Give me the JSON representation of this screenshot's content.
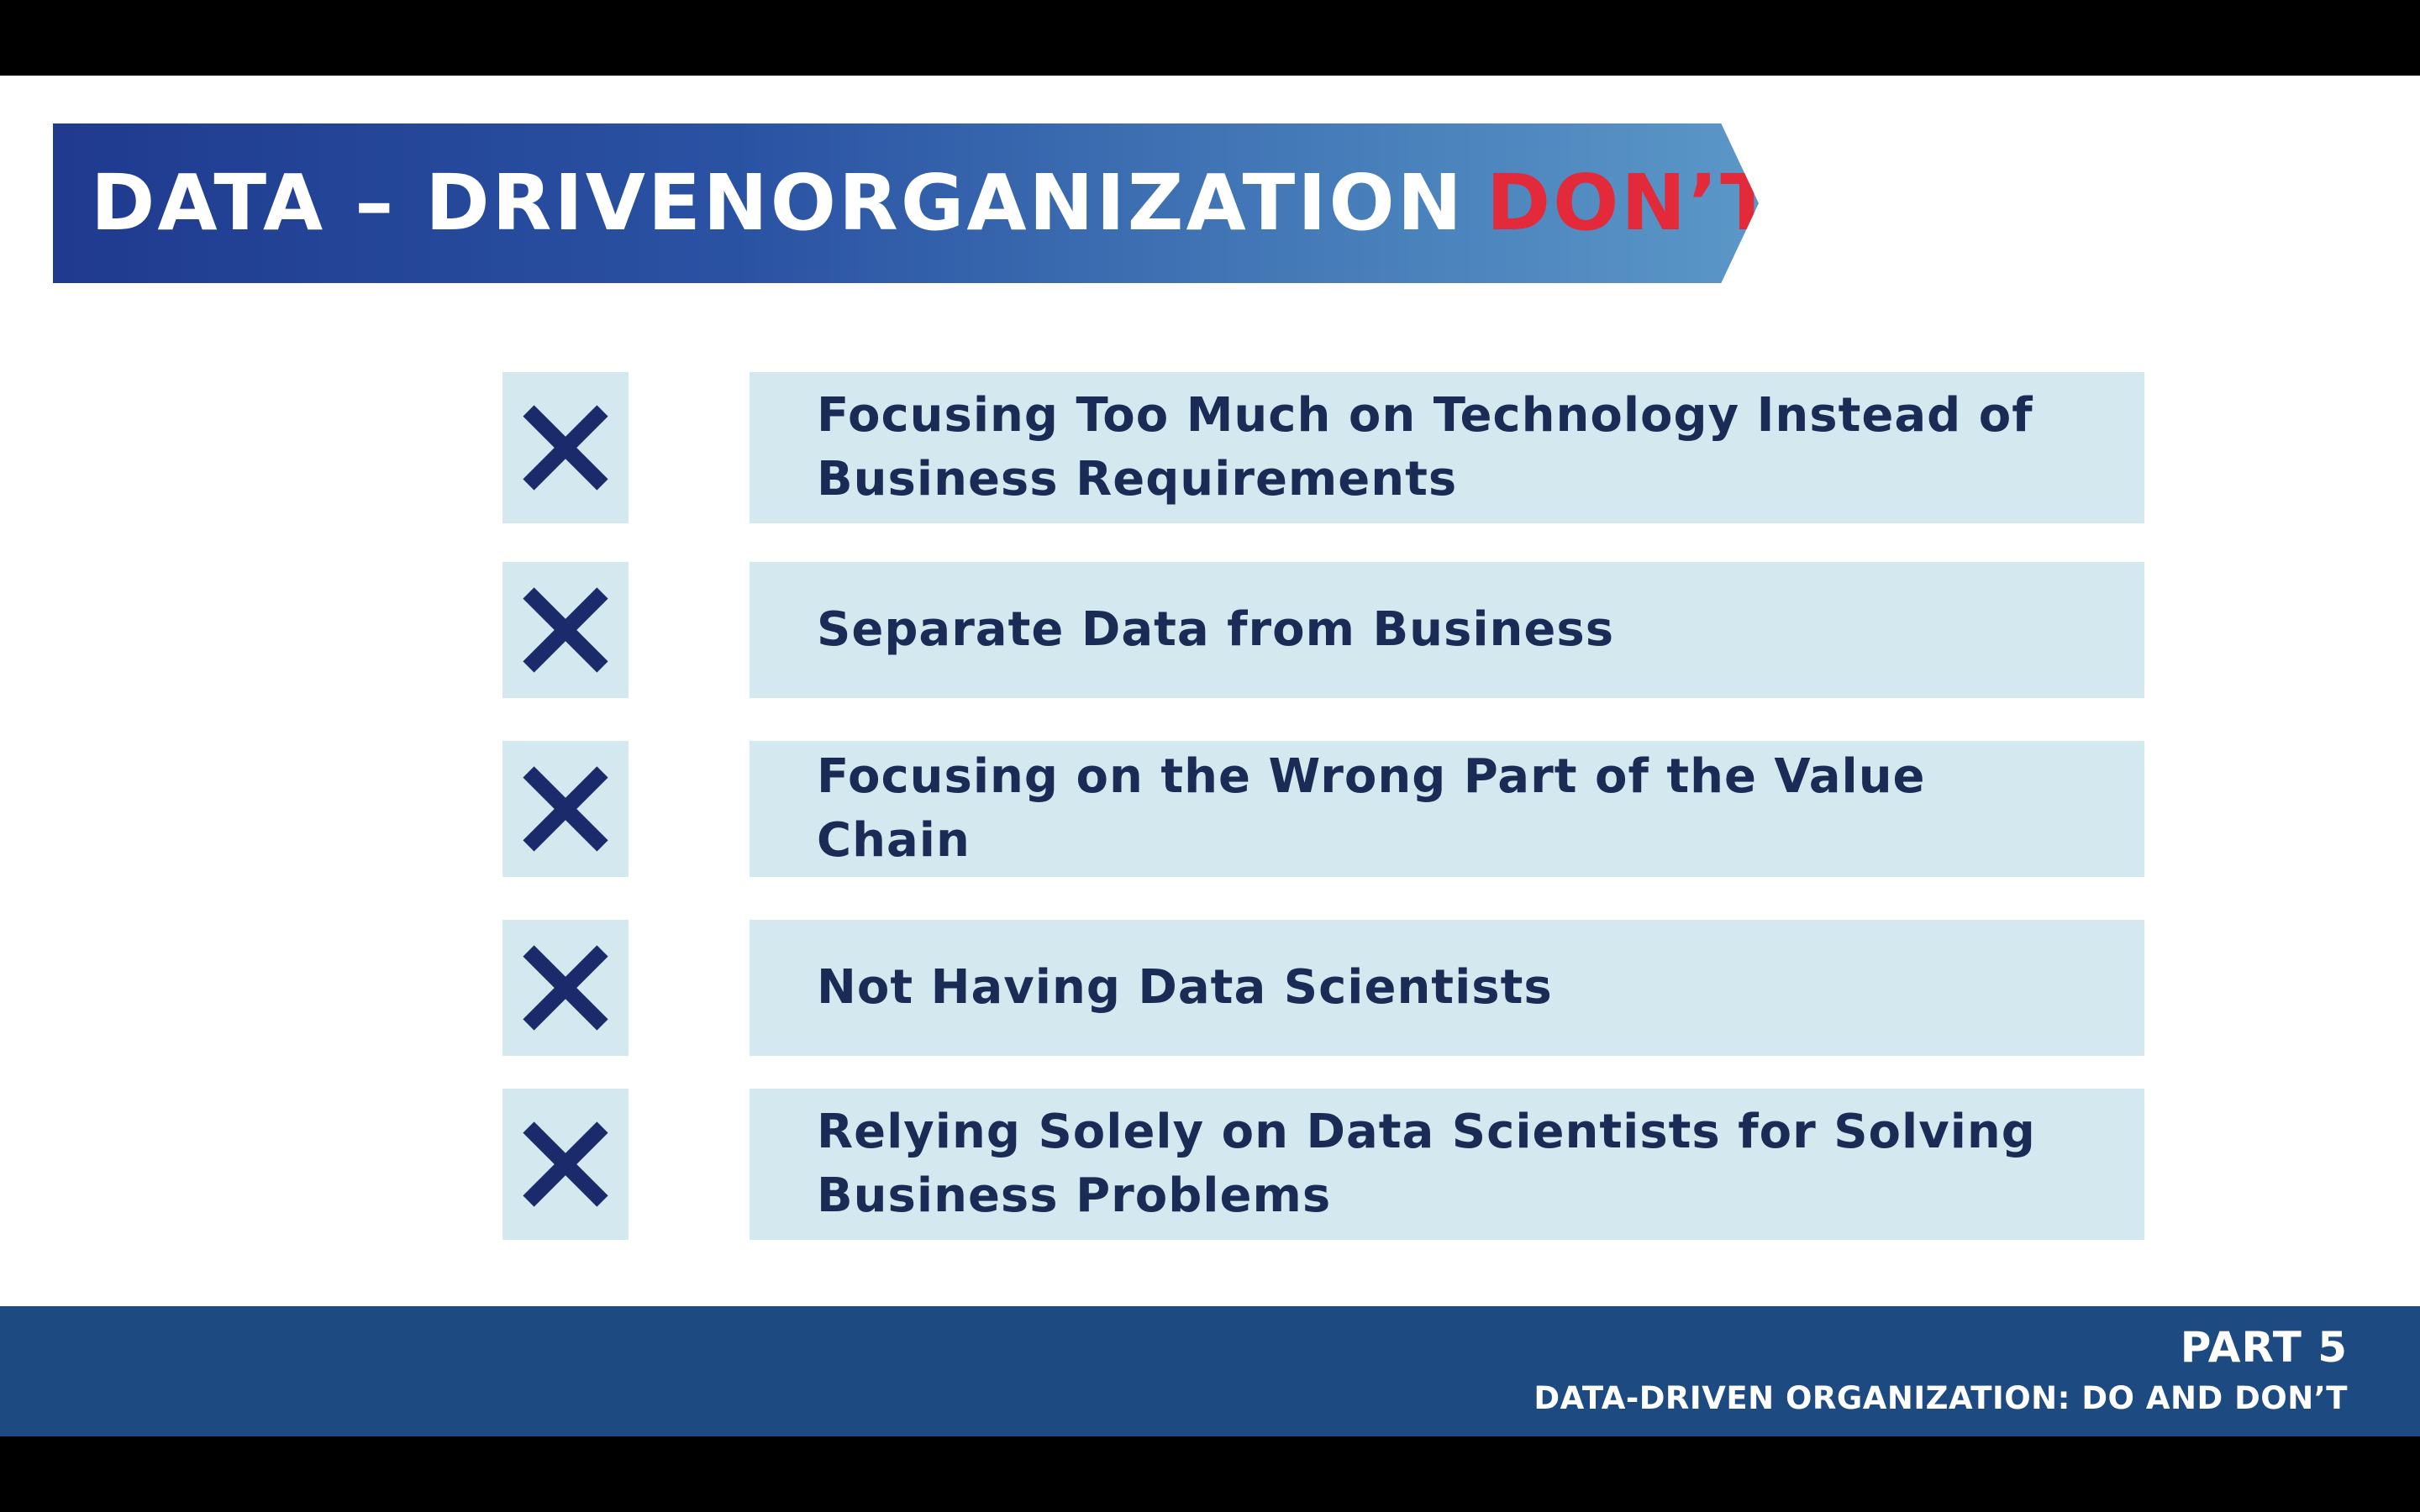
{
  "banner": {
    "title": "DATA – DRIVENORGANIZATION",
    "highlight": "DON’T",
    "highlight_color": "#e32a3a"
  },
  "items": [
    {
      "icon": "x-mark-icon",
      "text": "Focusing Too Much on Technology Instead of Business Requirements"
    },
    {
      "icon": "x-mark-icon",
      "text": "Separate Data from Business"
    },
    {
      "icon": "x-mark-icon",
      "text": "Focusing on the Wrong Part of the Value Chain"
    },
    {
      "icon": "x-mark-icon",
      "text": "Not Having Data Scientists"
    },
    {
      "icon": "x-mark-icon",
      "text": "Relying Solely on Data Scientists for Solving Business Problems"
    }
  ],
  "footer": {
    "part": "PART 5",
    "subtitle": "DATA-DRIVEN ORGANIZATION: DO AND DON’T"
  },
  "colors": {
    "banner_start": "#1f3a8f",
    "banner_end": "#5b97c7",
    "item_background": "#d4e8f0",
    "item_text": "#1a2b55",
    "x_mark": "#1b2a6b",
    "footer_background": "#1e4a82"
  }
}
